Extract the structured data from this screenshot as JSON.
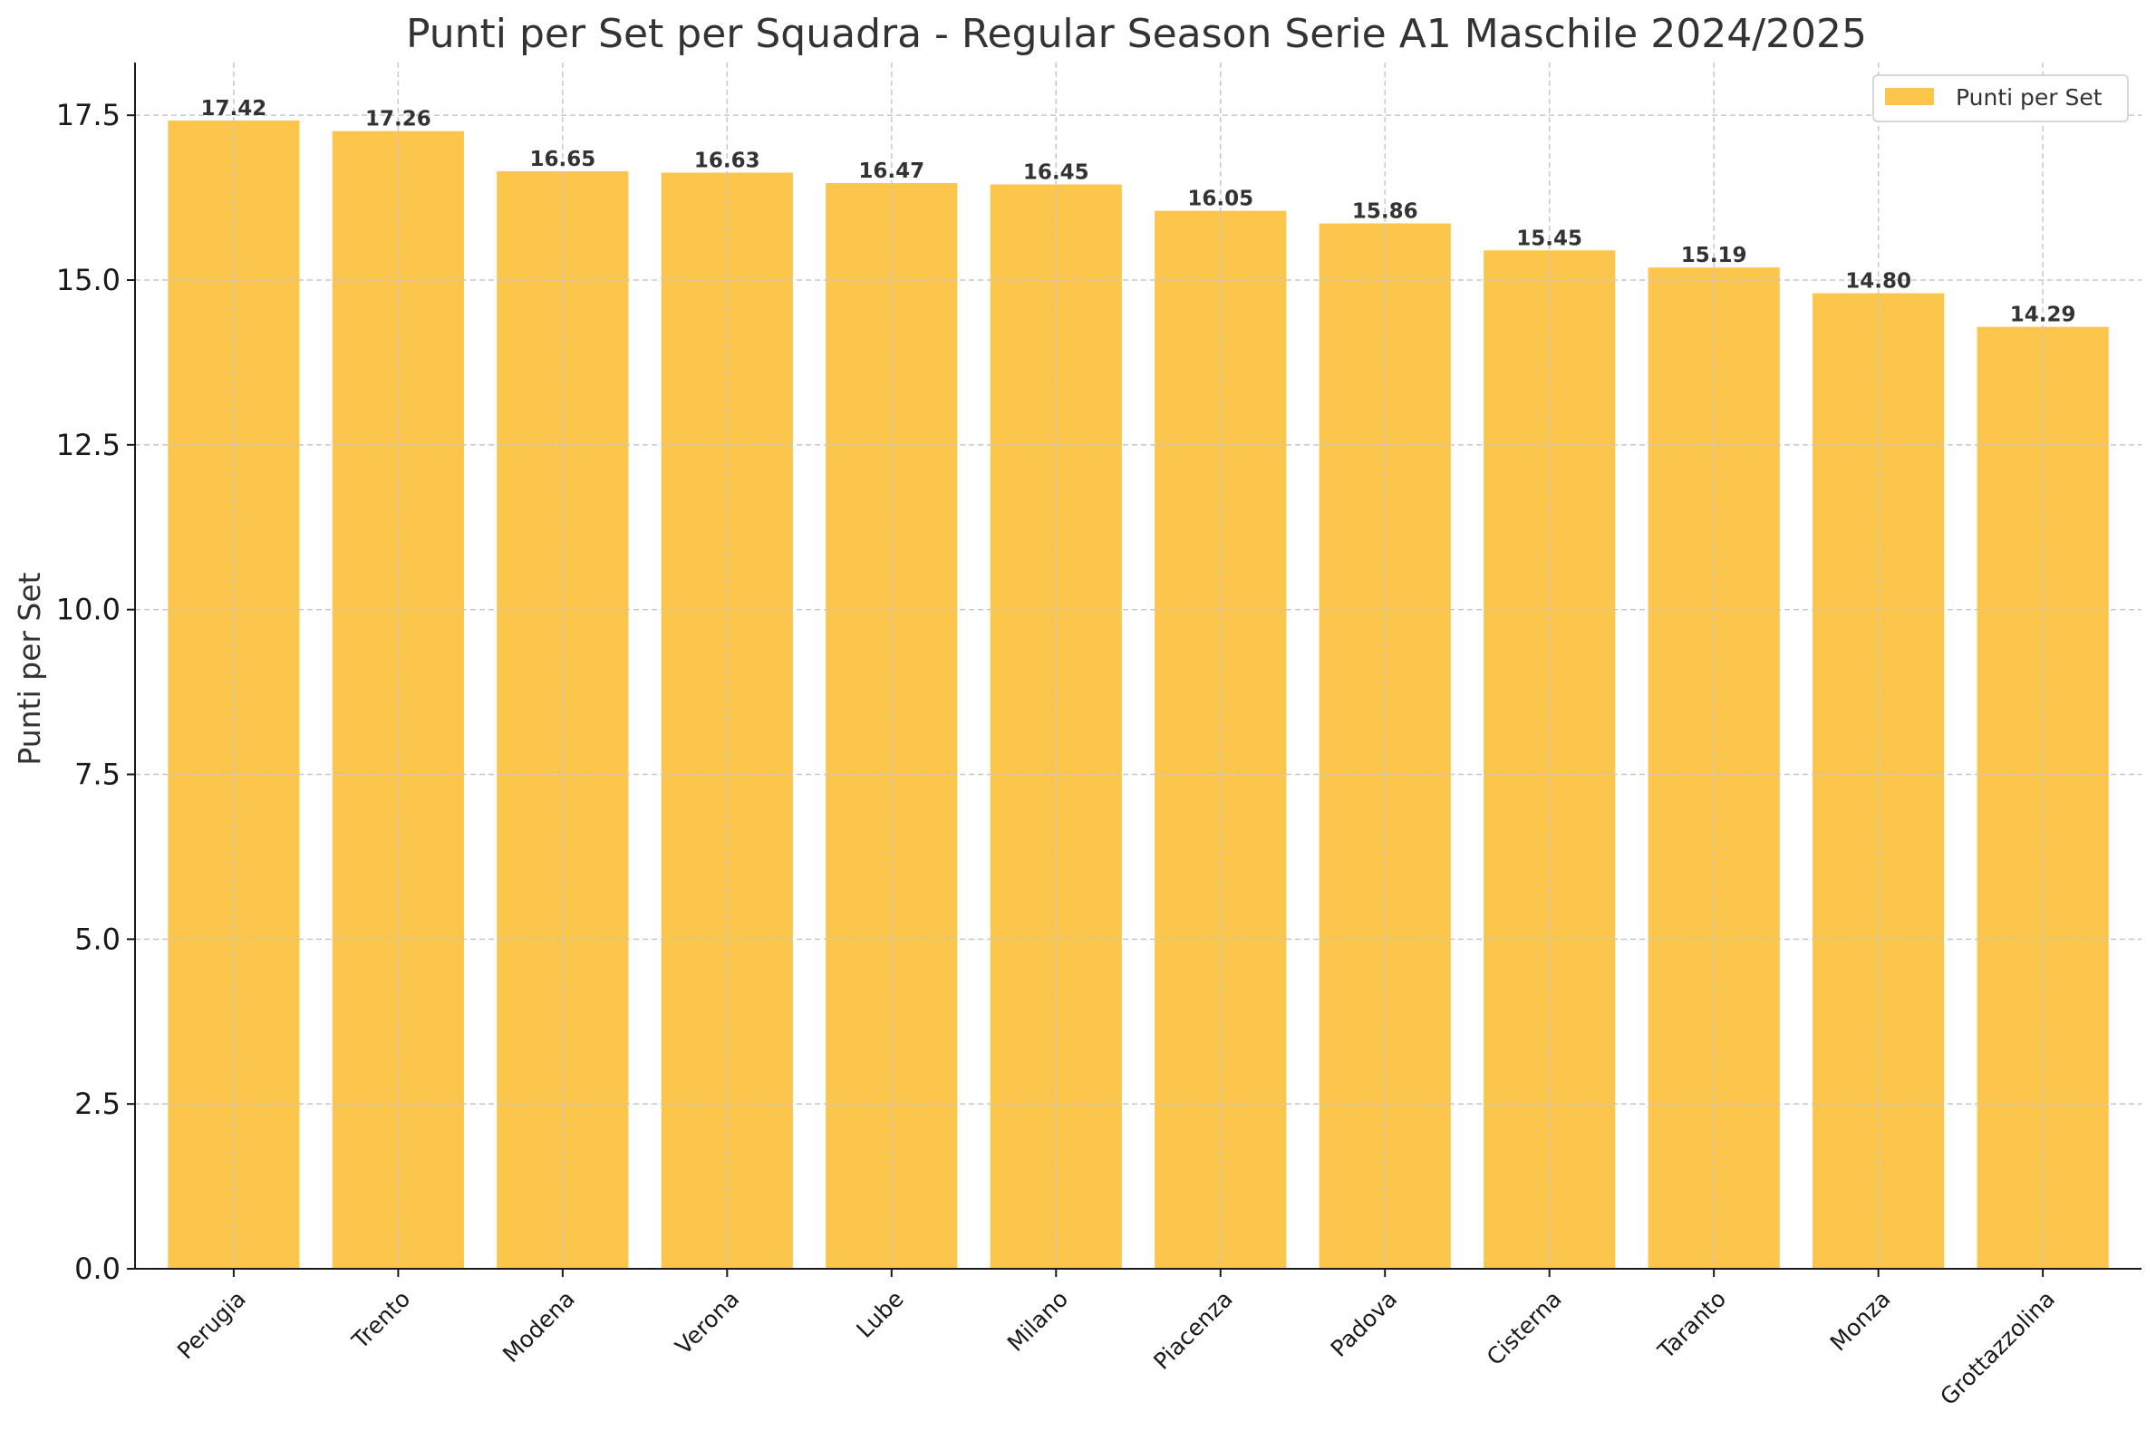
{
  "chart_data": {
    "type": "bar",
    "title": "Punti per Set per Squadra - Regular Season Serie A1 Maschile 2024/2025",
    "xlabel": "",
    "ylabel": "Punti per Set",
    "categories": [
      "Perugia",
      "Trento",
      "Modena",
      "Verona",
      "Lube",
      "Milano",
      "Piacenza",
      "Padova",
      "Cisterna",
      "Taranto",
      "Monza",
      "Grottazzolina"
    ],
    "series": [
      {
        "name": "Punti per Set",
        "values": [
          17.42,
          17.26,
          16.65,
          16.63,
          16.47,
          16.45,
          16.05,
          15.86,
          15.45,
          15.19,
          14.8,
          14.29
        ],
        "labels": [
          "17.42",
          "17.26",
          "16.65",
          "16.63",
          "16.47",
          "16.45",
          "16.05",
          "15.86",
          "15.45",
          "15.19",
          "14.80",
          "14.29"
        ],
        "color": "#fcc54b"
      }
    ],
    "ylim": [
      0,
      18.3
    ],
    "yticks": [
      0,
      2.5,
      5,
      7.5,
      10,
      12.5,
      15,
      17.5
    ],
    "ytick_labels": [
      "0.0",
      "2.5",
      "5.0",
      "7.5",
      "10.0",
      "12.5",
      "15.0",
      "17.5"
    ],
    "grid": true,
    "legend": "top-right"
  }
}
